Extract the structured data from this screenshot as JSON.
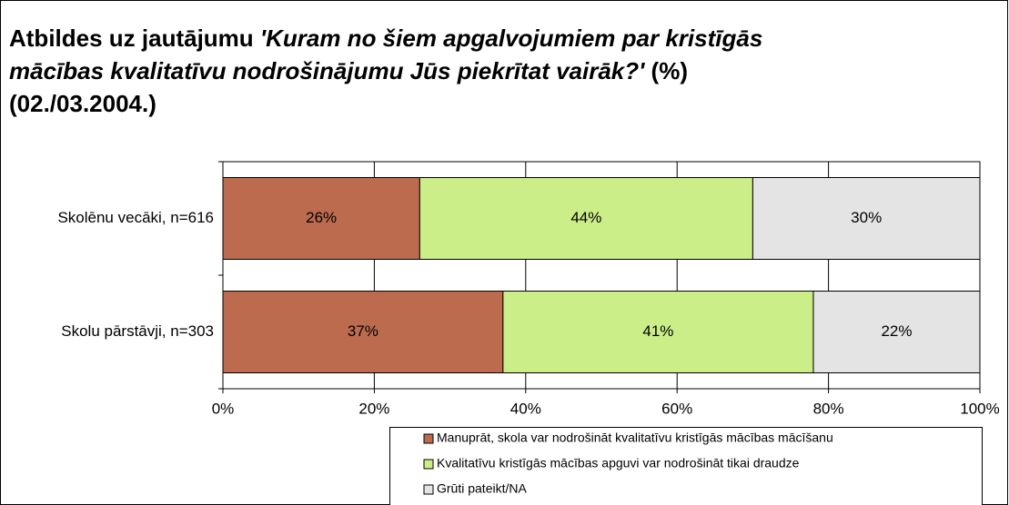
{
  "chart_data": {
    "type": "stacked-barh",
    "title": [
      "Atbildes uz jautājumu ",
      "'Kuram no šiem apgalvojumiem par kristīgās mācības kvalitatīvu nodrošinājumu Jūs piekrītat vairāk?'",
      " (%) (02./03.2004.)"
    ],
    "categories": [
      "Skolēnu vecāki, n=616",
      "Skolu pārstāvji, n=303"
    ],
    "series": [
      {
        "name": "Manuprāt, skola var nodrošināt kvalitatīvu kristīgās mācības mācīšanu",
        "color": "#bd6b4e",
        "values": [
          26,
          37
        ],
        "value_labels": [
          "26%",
          "37%"
        ]
      },
      {
        "name": "Kvalitatīvu kristīgās mācības apguvi var nodrošināt tikai draudze",
        "color": "#ccee88",
        "values": [
          44,
          41
        ],
        "value_labels": [
          "44%",
          "41%"
        ]
      },
      {
        "name": "Grūti pateikt/NA",
        "color": "#e4e4e4",
        "values": [
          30,
          22
        ],
        "value_labels": [
          "30%",
          "22%"
        ]
      }
    ],
    "xlim": [
      0,
      100
    ],
    "xticks": [
      {
        "value": 0,
        "label": "0%"
      },
      {
        "value": 20,
        "label": "20%"
      },
      {
        "value": 40,
        "label": "40%"
      },
      {
        "value": 60,
        "label": "60%"
      },
      {
        "value": 80,
        "label": "80%"
      },
      {
        "value": 100,
        "label": "100%"
      }
    ],
    "grid": true
  }
}
